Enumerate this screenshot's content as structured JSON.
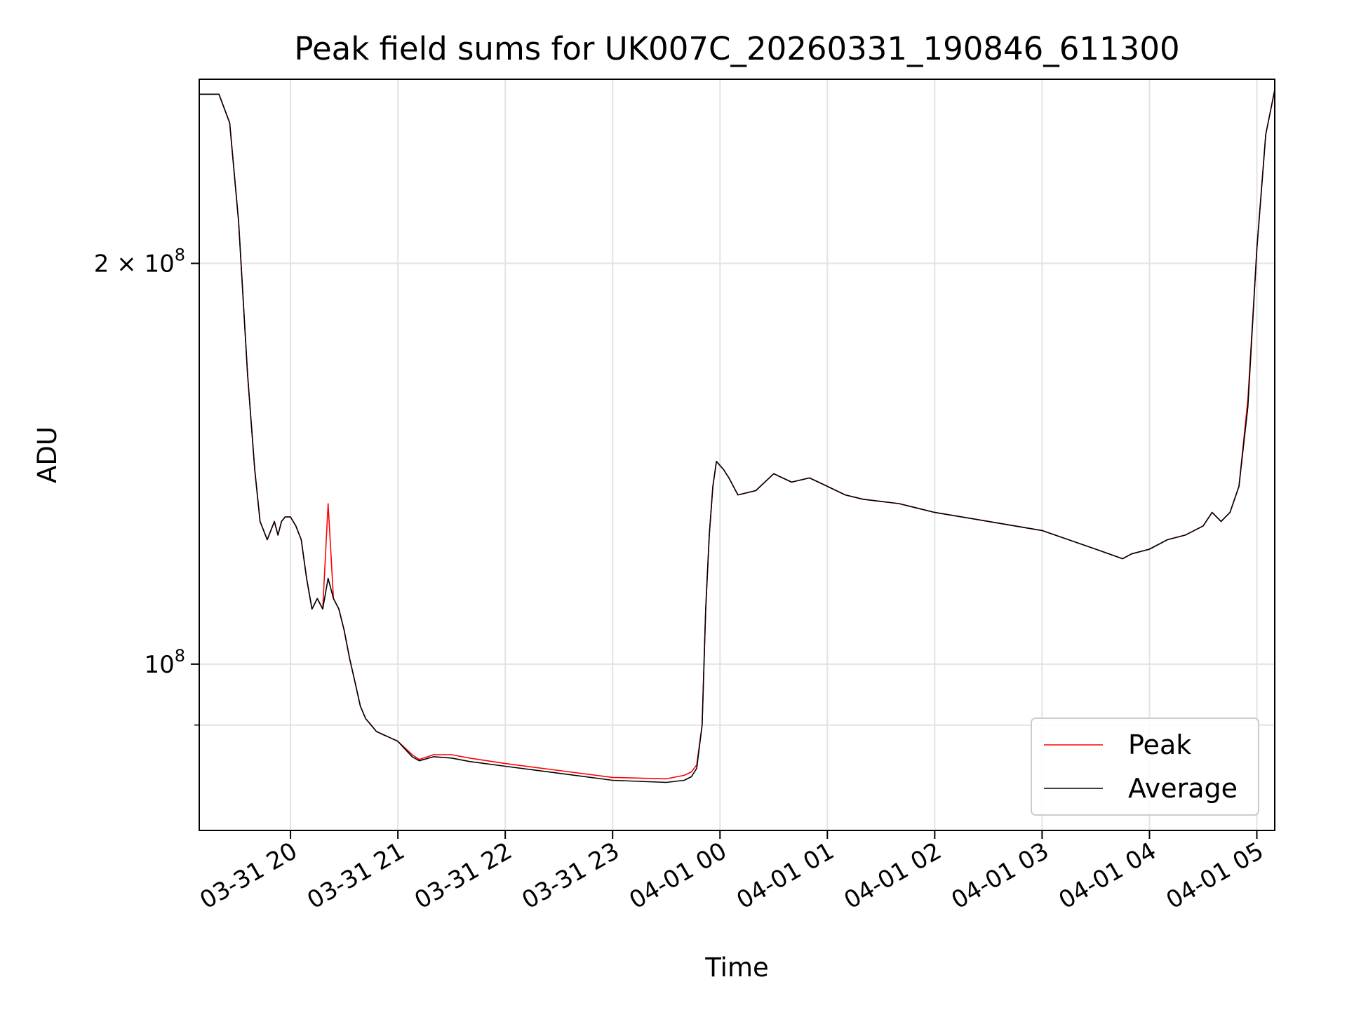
{
  "chart_data": {
    "type": "line",
    "title": "Peak field sums for UK007C_20260331_190846_611300",
    "xlabel": "Time",
    "ylabel": "ADU",
    "yscale": "log",
    "ylim": [
      75000000,
      275000000
    ],
    "xlim": [
      "03-31 19:09",
      "04-01 05:10"
    ],
    "grid": true,
    "legend_position": "lower-right",
    "x_ticks": [
      "03-31 20",
      "03-31 21",
      "03-31 22",
      "03-31 23",
      "04-01 00",
      "04-01 01",
      "04-01 02",
      "04-01 03",
      "04-01 04",
      "04-01 05"
    ],
    "y_major_ticks": [
      {
        "value": 100000000,
        "base": "10",
        "exp": "8"
      },
      {
        "value": 200000000,
        "base": "2 × 10",
        "exp": "8"
      }
    ],
    "y_minor_ticks": [
      90000000
    ],
    "x": [
      "03-31 19:09",
      "03-31 19:20",
      "03-31 19:26",
      "03-31 19:31",
      "03-31 19:36",
      "03-31 19:40",
      "03-31 19:43",
      "03-31 19:47",
      "03-31 19:51",
      "03-31 19:53",
      "03-31 19:55",
      "03-31 19:57",
      "03-31 20:00",
      "03-31 20:03",
      "03-31 20:06",
      "03-31 20:09",
      "03-31 20:12",
      "03-31 20:15",
      "03-31 20:18",
      "03-31 20:21",
      "03-31 20:24",
      "03-31 20:27",
      "03-31 20:30",
      "03-31 20:33",
      "03-31 20:36",
      "03-31 20:39",
      "03-31 20:42",
      "03-31 20:45",
      "03-31 20:48",
      "03-31 20:52",
      "03-31 20:56",
      "03-31 21:00",
      "03-31 21:08",
      "03-31 21:12",
      "03-31 21:20",
      "03-31 21:30",
      "03-31 21:40",
      "03-31 22:00",
      "03-31 22:30",
      "03-31 23:00",
      "03-31 23:30",
      "03-31 23:40",
      "03-31 23:44",
      "03-31 23:47",
      "03-31 23:50",
      "03-31 23:52",
      "03-31 23:54",
      "03-31 23:56",
      "03-31 23:58",
      "04-01 00:02",
      "04-01 00:05",
      "04-01 00:10",
      "04-01 00:20",
      "04-01 00:30",
      "04-01 00:40",
      "04-01 00:50",
      "04-01 01:00",
      "04-01 01:10",
      "04-01 01:20",
      "04-01 01:30",
      "04-01 01:40",
      "04-01 01:50",
      "04-01 02:00",
      "04-01 02:30",
      "04-01 03:00",
      "04-01 03:30",
      "04-01 03:45",
      "04-01 03:50",
      "04-01 04:00",
      "04-01 04:10",
      "04-01 04:20",
      "04-01 04:30",
      "04-01 04:35",
      "04-01 04:40",
      "04-01 04:45",
      "04-01 04:50",
      "04-01 04:55",
      "04-01 05:00",
      "04-01 05:05",
      "04-01 05:10"
    ],
    "series": [
      {
        "name": "Peak",
        "color": "#ff0000",
        "values": [
          268000000,
          268000000,
          255000000,
          215000000,
          165000000,
          140000000,
          128000000,
          124000000,
          128000000,
          125000000,
          128000000,
          129000000,
          129000000,
          127000000,
          124000000,
          116000000,
          110000000,
          112000000,
          110000000,
          132000000,
          112000000,
          110000000,
          106000000,
          101000000,
          97000000,
          93000000,
          91000000,
          90000000,
          89000000,
          88500000,
          88000000,
          87500000,
          85500000,
          84800000,
          85500000,
          85500000,
          85000000,
          84200000,
          83200000,
          82200000,
          82000000,
          82500000,
          83000000,
          84000000,
          90000000,
          110000000,
          125000000,
          136000000,
          142000000,
          140000000,
          138000000,
          134000000,
          135000000,
          139000000,
          137000000,
          138000000,
          136000000,
          134000000,
          133000000,
          132500000,
          132000000,
          131000000,
          130000000,
          128000000,
          126000000,
          122000000,
          120000000,
          121000000,
          122000000,
          124000000,
          125000000,
          127000000,
          130000000,
          128000000,
          130000000,
          136000000,
          158000000,
          205000000,
          250000000,
          270000000
        ]
      },
      {
        "name": "Average",
        "color": "#000000",
        "values": [
          268000000,
          268000000,
          255000000,
          215000000,
          165000000,
          140000000,
          128000000,
          124000000,
          128000000,
          125000000,
          128000000,
          129000000,
          129000000,
          127000000,
          124000000,
          116000000,
          110000000,
          112000000,
          110000000,
          116000000,
          112000000,
          110000000,
          106000000,
          101000000,
          97000000,
          93000000,
          91000000,
          90000000,
          89000000,
          88500000,
          88000000,
          87500000,
          85200000,
          84600000,
          85200000,
          85000000,
          84500000,
          83800000,
          82800000,
          81800000,
          81500000,
          81800000,
          82300000,
          83500000,
          90000000,
          110000000,
          125000000,
          136000000,
          142000000,
          140000000,
          138000000,
          134000000,
          135000000,
          139000000,
          137000000,
          138000000,
          136000000,
          134000000,
          133000000,
          132500000,
          132000000,
          131000000,
          130000000,
          128000000,
          126000000,
          122000000,
          120000000,
          121000000,
          122000000,
          124000000,
          125000000,
          127000000,
          130000000,
          128000000,
          130000000,
          136000000,
          156000000,
          205000000,
          250000000,
          270000000
        ]
      }
    ]
  }
}
